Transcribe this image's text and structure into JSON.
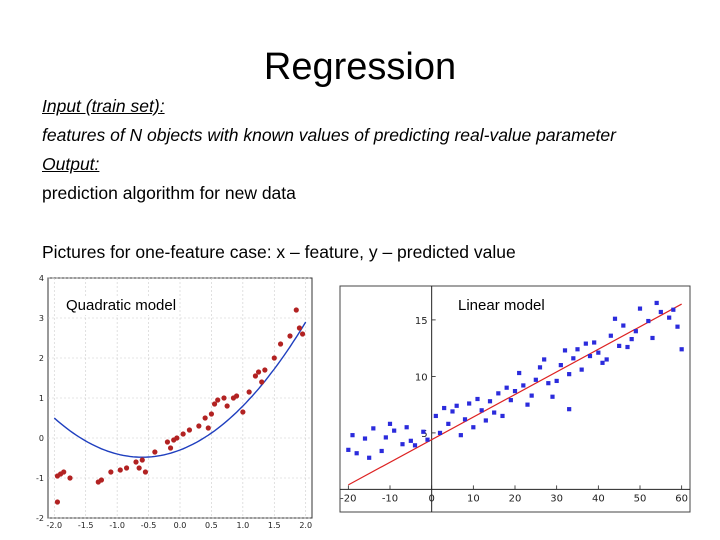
{
  "slide": {
    "title": "Regression",
    "input_label": "Input (train set):",
    "input_text": "features of N objects with known values of predicting real-value parameter",
    "output_label": "Output:",
    "output_text": "prediction algorithm for new data",
    "pictures_text": "Pictures for one-feature case: x – feature, y – predicted value"
  },
  "chart_data": [
    {
      "type": "scatter",
      "title": "Quadratic model",
      "xlim": [
        -2.1,
        2.1
      ],
      "ylim": [
        -2.0,
        4.0
      ],
      "x_ticks": [
        "-2.0",
        "-1.5",
        "-1.0",
        "-0.5",
        "0.0",
        "0.5",
        "1.0",
        "1.5",
        "2.0"
      ],
      "y_ticks": [
        "-2",
        "-1",
        "0",
        "1",
        "2",
        "3",
        "4"
      ],
      "grid": true,
      "point_color": "#b22222",
      "fit_color": "#1f3fbf",
      "fit": {
        "kind": "quadratic",
        "a": 0.5,
        "b": 0.6,
        "c": -0.3
      },
      "points": [
        [
          -1.95,
          -0.95
        ],
        [
          -1.9,
          -0.9
        ],
        [
          -1.85,
          -0.85
        ],
        [
          -1.75,
          -1.0
        ],
        [
          -1.95,
          -1.6
        ],
        [
          -1.3,
          -1.1
        ],
        [
          -1.25,
          -1.05
        ],
        [
          -1.1,
          -0.85
        ],
        [
          -0.95,
          -0.8
        ],
        [
          -0.85,
          -0.75
        ],
        [
          -0.7,
          -0.6
        ],
        [
          -0.65,
          -0.75
        ],
        [
          -0.6,
          -0.55
        ],
        [
          -0.55,
          -0.85
        ],
        [
          -0.4,
          -0.35
        ],
        [
          -0.2,
          -0.1
        ],
        [
          -0.15,
          -0.25
        ],
        [
          -0.1,
          -0.05
        ],
        [
          -0.05,
          0.0
        ],
        [
          0.05,
          0.1
        ],
        [
          0.15,
          0.2
        ],
        [
          0.3,
          0.3
        ],
        [
          0.4,
          0.5
        ],
        [
          0.45,
          0.25
        ],
        [
          0.5,
          0.6
        ],
        [
          0.55,
          0.85
        ],
        [
          0.6,
          0.95
        ],
        [
          0.7,
          1.0
        ],
        [
          0.75,
          0.8
        ],
        [
          0.85,
          1.0
        ],
        [
          0.9,
          1.05
        ],
        [
          1.0,
          0.65
        ],
        [
          1.1,
          1.15
        ],
        [
          1.2,
          1.55
        ],
        [
          1.25,
          1.65
        ],
        [
          1.3,
          1.4
        ],
        [
          1.35,
          1.7
        ],
        [
          1.5,
          2.0
        ],
        [
          1.6,
          2.35
        ],
        [
          1.75,
          2.55
        ],
        [
          1.85,
          3.2
        ],
        [
          1.9,
          2.75
        ],
        [
          1.95,
          2.6
        ]
      ]
    },
    {
      "type": "scatter",
      "title": "Linear model",
      "xlim": [
        -22,
        62
      ],
      "ylim": [
        -2,
        18
      ],
      "x_ticks": [
        "-20",
        "-10",
        "0",
        "10",
        "20",
        "30",
        "40",
        "50",
        "60"
      ],
      "y_ticks": [
        "5",
        "10",
        "15"
      ],
      "axes_through_origin": true,
      "grid": false,
      "point_color": "#2b2bdc",
      "fit_color": "#dd2222",
      "fit": {
        "kind": "linear",
        "m": 0.2,
        "b": 4.4
      },
      "points": [
        [
          -20,
          3.5
        ],
        [
          -19,
          4.8
        ],
        [
          -18,
          3.2
        ],
        [
          -16,
          4.5
        ],
        [
          -15,
          2.8
        ],
        [
          -14,
          5.4
        ],
        [
          -12,
          3.4
        ],
        [
          -11,
          4.6
        ],
        [
          -10,
          5.8
        ],
        [
          -9,
          5.2
        ],
        [
          -7,
          4.0
        ],
        [
          -6,
          5.5
        ],
        [
          -5,
          4.3
        ],
        [
          -4,
          3.9
        ],
        [
          -2,
          5.1
        ],
        [
          -1,
          4.4
        ],
        [
          1,
          6.5
        ],
        [
          2,
          5.0
        ],
        [
          3,
          7.2
        ],
        [
          4,
          5.8
        ],
        [
          5,
          6.9
        ],
        [
          6,
          7.4
        ],
        [
          7,
          4.8
        ],
        [
          8,
          6.2
        ],
        [
          9,
          7.6
        ],
        [
          10,
          5.5
        ],
        [
          11,
          8.0
        ],
        [
          12,
          7.0
        ],
        [
          13,
          6.1
        ],
        [
          14,
          7.8
        ],
        [
          15,
          6.8
        ],
        [
          16,
          8.5
        ],
        [
          17,
          6.5
        ],
        [
          18,
          9.0
        ],
        [
          19,
          7.9
        ],
        [
          20,
          8.7
        ],
        [
          21,
          10.3
        ],
        [
          22,
          9.2
        ],
        [
          23,
          7.5
        ],
        [
          24,
          8.3
        ],
        [
          25,
          9.7
        ],
        [
          26,
          10.8
        ],
        [
          27,
          11.5
        ],
        [
          28,
          9.4
        ],
        [
          29,
          8.2
        ],
        [
          30,
          9.6
        ],
        [
          31,
          11.0
        ],
        [
          32,
          12.3
        ],
        [
          33,
          10.2
        ],
        [
          34,
          11.6
        ],
        [
          35,
          12.4
        ],
        [
          36,
          10.6
        ],
        [
          37,
          12.9
        ],
        [
          38,
          11.8
        ],
        [
          39,
          13.0
        ],
        [
          40,
          12.1
        ],
        [
          41,
          11.2
        ],
        [
          42,
          11.5
        ],
        [
          43,
          13.6
        ],
        [
          44,
          15.1
        ],
        [
          45,
          12.7
        ],
        [
          46,
          14.5
        ],
        [
          47,
          12.6
        ],
        [
          48,
          13.3
        ],
        [
          49,
          14.0
        ],
        [
          50,
          16.0
        ],
        [
          52,
          14.9
        ],
        [
          53,
          13.4
        ],
        [
          54,
          16.5
        ],
        [
          55,
          15.7
        ],
        [
          57,
          15.2
        ],
        [
          58,
          15.9
        ],
        [
          59,
          14.4
        ],
        [
          60,
          12.4
        ],
        [
          33,
          7.1
        ]
      ]
    }
  ]
}
